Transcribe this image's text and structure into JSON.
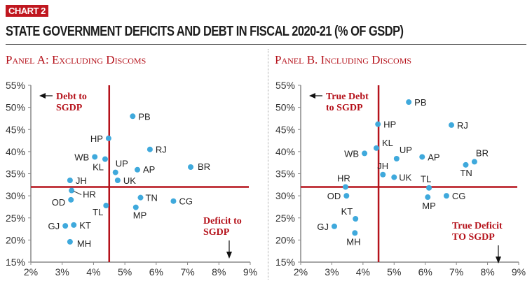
{
  "badge": "CHART 2",
  "title": "STATE GOVERNMENT DEFICITS AND DEBT IN FISCAL 2020-21 (% OF GSDP)",
  "colors": {
    "accent": "#b5121b",
    "point": "#3fa9dc",
    "axis": "#888888",
    "text": "#222222"
  },
  "chart_data": [
    {
      "type": "scatter",
      "title": "Panel A: Excluding Discoms",
      "xlabel": "Deficit to SGDP",
      "ylabel": "Debt to SGDP",
      "xlim": [
        2,
        9
      ],
      "ylim": [
        15,
        55
      ],
      "x_ticks": [
        "2%",
        "3%",
        "4%",
        "5%",
        "6%",
        "7%",
        "8%",
        "9%"
      ],
      "y_ticks": [
        "15%",
        "20%",
        "25%",
        "30%",
        "35%",
        "40%",
        "45%",
        "50%",
        "55%"
      ],
      "reference_lines": {
        "x": 4.5,
        "y": 32
      },
      "grid": false,
      "annotations": [
        "Debt to SGDP",
        "Deficit to SGDP"
      ],
      "points": [
        {
          "label": "PB",
          "x": 5.25,
          "y": 48.0
        },
        {
          "label": "HP",
          "x": 4.48,
          "y": 43.0
        },
        {
          "label": "RJ",
          "x": 5.8,
          "y": 40.5
        },
        {
          "label": "WB",
          "x": 4.04,
          "y": 38.8
        },
        {
          "label": "KL",
          "x": 4.37,
          "y": 38.3
        },
        {
          "label": "UP",
          "x": 4.7,
          "y": 35.3
        },
        {
          "label": "AP",
          "x": 5.4,
          "y": 35.9
        },
        {
          "label": "BR",
          "x": 7.1,
          "y": 36.5
        },
        {
          "label": "UK",
          "x": 4.77,
          "y": 33.5
        },
        {
          "label": "JH",
          "x": 3.25,
          "y": 33.5
        },
        {
          "label": "HR",
          "x": 3.3,
          "y": 31.2
        },
        {
          "label": "OD",
          "x": 3.28,
          "y": 29.1
        },
        {
          "label": "TL",
          "x": 4.4,
          "y": 27.8
        },
        {
          "label": "TN",
          "x": 5.5,
          "y": 29.6
        },
        {
          "label": "MP",
          "x": 5.35,
          "y": 27.4
        },
        {
          "label": "CG",
          "x": 6.55,
          "y": 28.8
        },
        {
          "label": "GJ",
          "x": 3.1,
          "y": 23.2
        },
        {
          "label": "KT",
          "x": 3.37,
          "y": 23.4
        },
        {
          "label": "MH",
          "x": 3.25,
          "y": 19.6
        }
      ]
    },
    {
      "type": "scatter",
      "title": "Panel B. Including Discoms",
      "xlabel": "True Deficit TO SGDP",
      "ylabel": "True Debt to SGDP",
      "xlim": [
        2,
        9
      ],
      "ylim": [
        15,
        55
      ],
      "x_ticks": [
        "2%",
        "3%",
        "4%",
        "5%",
        "6%",
        "7%",
        "8%",
        "9%"
      ],
      "y_ticks": [
        "15%",
        "20%",
        "25%",
        "30%",
        "35%",
        "40%",
        "45%",
        "50%",
        "55%"
      ],
      "reference_lines": {
        "x": 4.5,
        "y": 32
      },
      "grid": false,
      "annotations": [
        "True Debt to SGDP",
        "True Deficit TO SGDP"
      ],
      "points": [
        {
          "label": "PB",
          "x": 5.47,
          "y": 51.2
        },
        {
          "label": "HP",
          "x": 4.48,
          "y": 46.2
        },
        {
          "label": "RJ",
          "x": 6.84,
          "y": 46.0
        },
        {
          "label": "KL",
          "x": 4.43,
          "y": 40.8
        },
        {
          "label": "WB",
          "x": 4.05,
          "y": 39.6
        },
        {
          "label": "UP",
          "x": 5.08,
          "y": 38.4
        },
        {
          "label": "AP",
          "x": 5.9,
          "y": 38.8
        },
        {
          "label": "BR",
          "x": 7.58,
          "y": 37.7
        },
        {
          "label": "TN",
          "x": 7.3,
          "y": 37.0
        },
        {
          "label": "JH",
          "x": 4.64,
          "y": 34.8
        },
        {
          "label": "UK",
          "x": 5.0,
          "y": 34.2
        },
        {
          "label": "TL",
          "x": 6.12,
          "y": 31.8
        },
        {
          "label": "HR",
          "x": 3.44,
          "y": 32.0
        },
        {
          "label": "OD",
          "x": 3.47,
          "y": 30.0
        },
        {
          "label": "MP",
          "x": 6.08,
          "y": 29.7
        },
        {
          "label": "CG",
          "x": 6.68,
          "y": 30.0
        },
        {
          "label": "KT",
          "x": 3.76,
          "y": 24.8
        },
        {
          "label": "GJ",
          "x": 3.08,
          "y": 23.1
        },
        {
          "label": "MH",
          "x": 3.74,
          "y": 21.6
        }
      ]
    }
  ]
}
